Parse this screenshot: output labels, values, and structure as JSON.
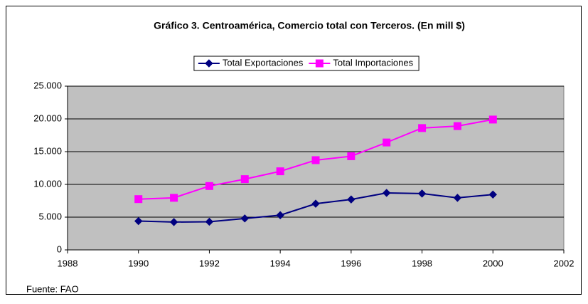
{
  "chart_data": {
    "type": "line",
    "title": "Gráfico 3. Centroamérica, Comercio total con Terceros. (En mill $)",
    "source": "Fuente: FAO",
    "x": [
      1990,
      1991,
      1992,
      1993,
      1994,
      1995,
      1996,
      1997,
      1998,
      1999,
      2000
    ],
    "series": [
      {
        "name": "Total Exportaciones",
        "color": "#000080",
        "marker": "diamond",
        "values": [
          4400,
          4250,
          4300,
          4800,
          5300,
          7050,
          7700,
          8700,
          8600,
          7950,
          8450
        ]
      },
      {
        "name": "Total Importaciones",
        "color": "#ff00ff",
        "marker": "square",
        "values": [
          7750,
          7950,
          9750,
          10800,
          12000,
          13700,
          14300,
          16400,
          18600,
          18900,
          19900
        ]
      }
    ],
    "xlim": [
      1988,
      2002
    ],
    "xticks": [
      1988,
      1990,
      1992,
      1994,
      1996,
      1998,
      2000,
      2002
    ],
    "ylim": [
      0,
      25000
    ],
    "yticks": [
      0,
      {
        "value": 5000,
        "label": "5.000"
      },
      {
        "value": 10000,
        "label": "10.000"
      },
      {
        "value": 15000,
        "label": "15.000"
      },
      {
        "value": 20000,
        "label": "20.000"
      },
      {
        "value": 25000,
        "label": "25.000"
      }
    ],
    "grid": true,
    "plot_background": "#c0c0c0",
    "legend": "top"
  }
}
